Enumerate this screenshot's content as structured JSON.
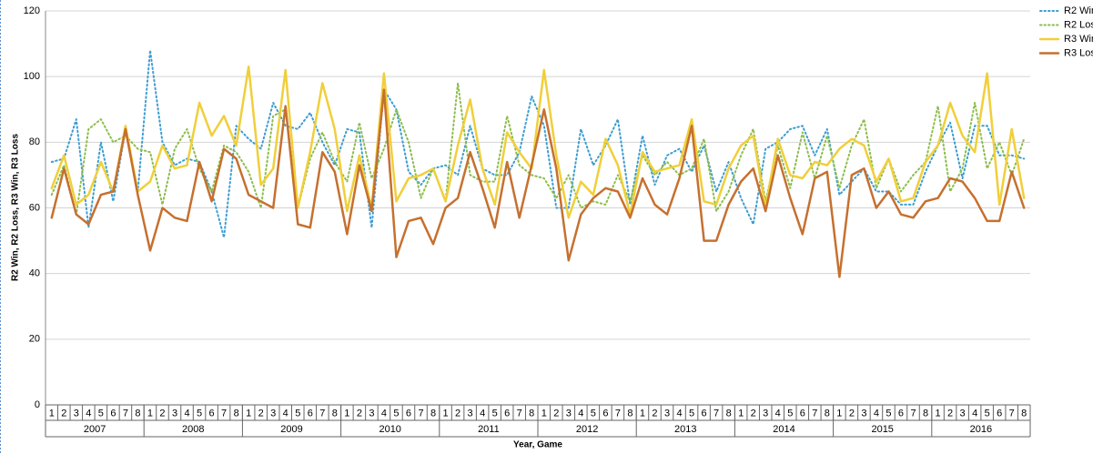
{
  "chart_data": {
    "type": "line",
    "y_label": "R2 Win, R2 Loss, R3 Win, R3 Loss",
    "x_label": "Year, Game",
    "categories": [
      "1",
      "2",
      "3",
      "4",
      "5",
      "6",
      "7",
      "8",
      "1",
      "2",
      "3",
      "4",
      "5",
      "6",
      "7",
      "8",
      "1",
      "2",
      "3",
      "4",
      "5",
      "6",
      "7",
      "8",
      "1",
      "2",
      "3",
      "4",
      "5",
      "6",
      "7",
      "8",
      "1",
      "2",
      "3",
      "4",
      "5",
      "6",
      "7",
      "8",
      "1",
      "2",
      "3",
      "4",
      "5",
      "6",
      "7",
      "8",
      "1",
      "2",
      "3",
      "4",
      "5",
      "6",
      "7",
      "8",
      "1",
      "2",
      "3",
      "4",
      "5",
      "6",
      "7",
      "8",
      "1",
      "2",
      "3",
      "4",
      "5",
      "6",
      "7",
      "8",
      "1",
      "2",
      "3",
      "4",
      "5",
      "6",
      "7",
      "8"
    ],
    "category_groups": [
      "2007",
      "2008",
      "2009",
      "2010",
      "2011",
      "2012",
      "2013",
      "2014",
      "2015",
      "2016"
    ],
    "ylim": [
      0,
      120
    ],
    "yticks": [
      0,
      20,
      40,
      60,
      80,
      100,
      120
    ],
    "grid": true,
    "legend": "top-right",
    "series": [
      {
        "name": "R2 Win",
        "color": "#3d9dd1",
        "style": "dotted",
        "values": [
          74,
          75,
          87,
          54,
          80,
          62,
          84,
          65,
          108,
          80,
          73,
          75,
          74,
          65,
          51,
          85,
          81,
          78,
          92,
          85,
          84,
          89,
          80,
          73,
          84,
          83,
          54,
          96,
          90,
          71,
          67,
          72,
          73,
          70,
          85,
          72,
          70,
          70,
          77,
          94,
          85,
          60,
          60,
          84,
          73,
          79,
          87,
          61,
          82,
          67,
          76,
          78,
          71,
          79,
          65,
          74,
          63,
          55,
          78,
          80,
          84,
          85,
          76,
          84,
          64,
          68,
          72,
          65,
          65,
          61,
          61,
          71,
          79,
          86,
          69,
          85,
          85,
          76,
          76,
          75
        ]
      },
      {
        "name": "R2 Loss",
        "color": "#8dbd4b",
        "style": "dotted",
        "values": [
          64,
          73,
          58,
          84,
          87,
          80,
          82,
          78,
          77,
          61,
          78,
          84,
          72,
          65,
          79,
          77,
          71,
          60,
          88,
          90,
          60,
          75,
          83,
          74,
          68,
          86,
          69,
          78,
          90,
          80,
          63,
          72,
          62,
          98,
          70,
          68,
          68,
          88,
          73,
          70,
          69,
          63,
          70,
          60,
          62,
          61,
          70,
          62,
          76,
          70,
          74,
          70,
          72,
          81,
          59,
          65,
          76,
          84,
          62,
          79,
          66,
          83,
          69,
          82,
          66,
          79,
          87,
          66,
          75,
          65,
          70,
          74,
          91,
          65,
          72,
          92,
          72,
          80,
          70,
          81
        ]
      },
      {
        "name": "R3 Win",
        "color": "#f0cf3a",
        "style": "solid",
        "values": [
          66,
          76,
          61,
          64,
          74,
          65,
          85,
          65,
          68,
          79,
          72,
          73,
          92,
          82,
          88,
          79,
          103,
          67,
          72,
          102,
          60,
          77,
          98,
          84,
          59,
          76,
          60,
          101,
          62,
          69,
          70,
          72,
          62,
          79,
          93,
          72,
          61,
          83,
          77,
          72,
          102,
          76,
          57,
          68,
          64,
          81,
          73,
          58,
          77,
          71,
          72,
          73,
          87,
          62,
          61,
          72,
          79,
          82,
          60,
          81,
          70,
          69,
          74,
          73,
          78,
          81,
          79,
          68,
          75,
          62,
          63,
          74,
          79,
          92,
          82,
          77,
          101,
          61,
          84,
          63
        ]
      },
      {
        "name": "R3 Loss",
        "color": "#c6702f",
        "style": "solid",
        "values": [
          57,
          72,
          58,
          55,
          64,
          65,
          84,
          64,
          47,
          60,
          57,
          56,
          74,
          62,
          78,
          75,
          64,
          62,
          60,
          91,
          55,
          54,
          77,
          71,
          52,
          73,
          59,
          96,
          45,
          56,
          57,
          49,
          60,
          63,
          77,
          66,
          54,
          74,
          57,
          73,
          90,
          72,
          44,
          58,
          63,
          66,
          65,
          57,
          69,
          61,
          58,
          69,
          85,
          50,
          50,
          61,
          68,
          72,
          59,
          76,
          63,
          52,
          69,
          71,
          39,
          70,
          72,
          60,
          65,
          58,
          57,
          62,
          63,
          69,
          68,
          63,
          56,
          56,
          71,
          60
        ]
      }
    ]
  }
}
